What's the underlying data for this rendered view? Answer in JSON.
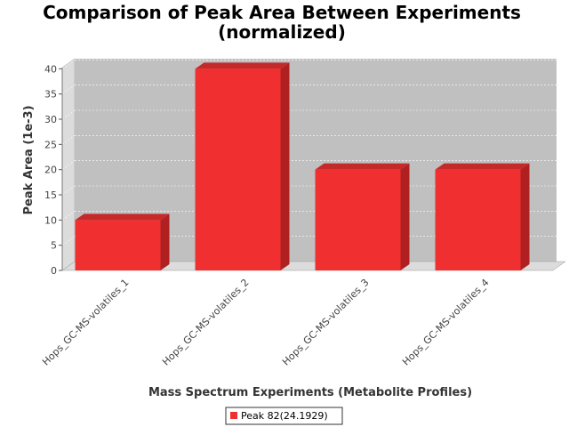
{
  "chart_data": {
    "type": "bar",
    "title_lines": [
      "Comparison of Peak Area Between Experiments",
      "(normalized)"
    ],
    "xlabel": "Mass Spectrum Experiments (Metabolite Profiles)",
    "ylabel": "Peak Area (1e-3)",
    "categories": [
      "Hops_GC-MS-volatiles_1",
      "Hops_GC-MS-volatiles_2",
      "Hops_GC-MS-volatiles_3",
      "Hops_GC-MS-volatiles_4"
    ],
    "series": [
      {
        "name": "Peak 82(24.1929)",
        "values": [
          10,
          40,
          20,
          20
        ],
        "color": "#f03030"
      }
    ],
    "ylim": [
      0,
      42
    ],
    "yticks": [
      0,
      5,
      10,
      15,
      20,
      25,
      30,
      35,
      40
    ],
    "grid": true,
    "legend_position": "bottom",
    "colors": {
      "plot_background": "#c0c0c0",
      "wall": "#dcdcdc",
      "bar_front": "#f03030",
      "bar_top": "#c52a2a",
      "bar_side": "#b02020"
    }
  }
}
